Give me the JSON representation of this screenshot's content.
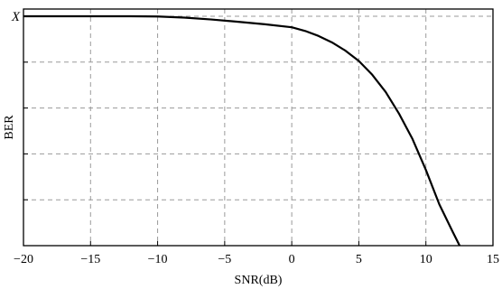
{
  "chart_data": {
    "type": "line",
    "xlabel": "SNR(dB)",
    "ylabel": "BER",
    "x_ticks": [
      -20,
      -15,
      -10,
      -5,
      0,
      5,
      10,
      15
    ],
    "x_tick_labels": [
      "−20",
      "−15",
      "−10",
      "−5",
      "0",
      "5",
      "10",
      "15"
    ],
    "xlim": [
      -20,
      15
    ],
    "ylim": [
      0,
      1
    ],
    "y_ticks": [
      0.2,
      0.4,
      0.6,
      0.8,
      1.0
    ],
    "y_tick_labels": [
      "",
      "",
      "",
      "",
      "X"
    ],
    "grid": true,
    "series": [
      {
        "x": [
          -20,
          -15,
          -12,
          -10,
          -8,
          -6,
          -4,
          -2,
          0,
          1,
          2,
          3,
          4,
          5,
          6,
          7,
          8,
          9,
          10,
          11,
          12,
          12.6,
          13
        ],
        "y": [
          1.0,
          1.0,
          1.0,
          0.999,
          0.994,
          0.986,
          0.976,
          0.965,
          0.952,
          0.936,
          0.914,
          0.886,
          0.85,
          0.805,
          0.745,
          0.67,
          0.575,
          0.465,
          0.33,
          0.18,
          0.06,
          -0.01,
          -0.05
        ]
      }
    ]
  }
}
